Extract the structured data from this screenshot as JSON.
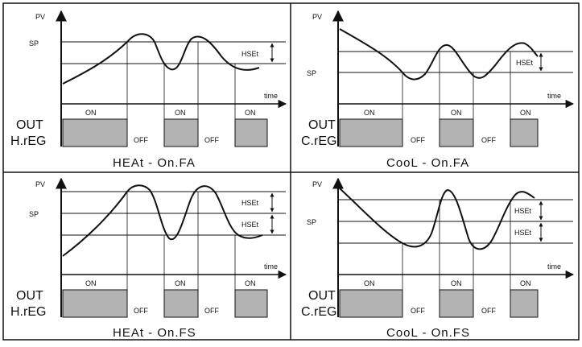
{
  "panels": [
    {
      "id": "heat-onfa",
      "title": "HEAt - On.FA",
      "pv_label": "PV",
      "sp_label": "SP",
      "hset_labels": [
        "HSEt"
      ],
      "time_label": "time",
      "out_label": "OUT",
      "mode_label": "H.rEG",
      "on_label": "ON",
      "off_label": "OFF"
    },
    {
      "id": "cool-onfa",
      "title": "CooL - On.FA",
      "pv_label": "PV",
      "sp_label": "SP",
      "hset_labels": [
        "HSEt"
      ],
      "time_label": "time",
      "out_label": "OUT",
      "mode_label": "C.rEG",
      "on_label": "ON",
      "off_label": "OFF"
    },
    {
      "id": "heat-onfs",
      "title": "HEAt - On.FS",
      "pv_label": "PV",
      "sp_label": "SP",
      "hset_labels": [
        "HSEt",
        "HSEt"
      ],
      "time_label": "time",
      "out_label": "OUT",
      "mode_label": "H.rEG",
      "on_label": "ON",
      "off_label": "OFF"
    },
    {
      "id": "cool-onfs",
      "title": "CooL - On.FS",
      "pv_label": "PV",
      "sp_label": "SP",
      "hset_labels": [
        "HSEt",
        "HSEt"
      ],
      "time_label": "time",
      "out_label": "OUT",
      "mode_label": "C.rEG",
      "on_label": "ON",
      "off_label": "OFF"
    }
  ]
}
